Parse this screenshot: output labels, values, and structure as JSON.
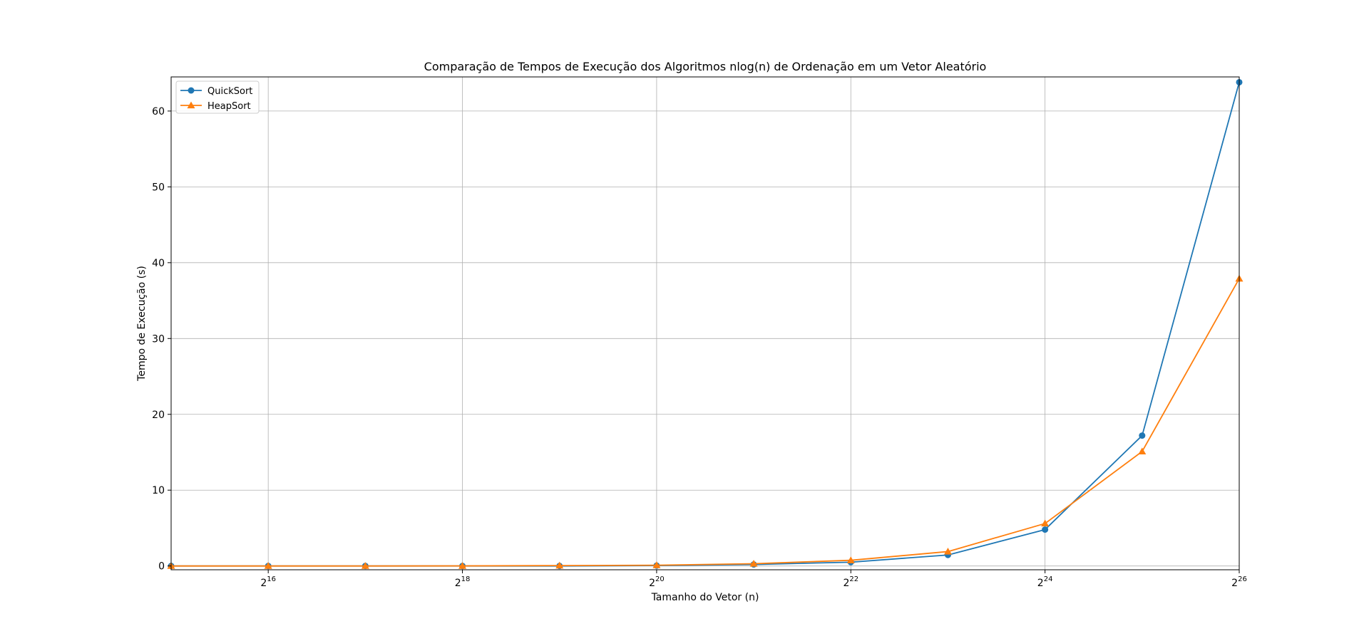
{
  "chart_data": {
    "type": "line",
    "title": "Comparação de Tempos de Execução dos Algoritmos nlog(n) de Ordenação em um Vetor Aleatório",
    "xlabel": "Tamanho do Vetor (n)",
    "ylabel": "Tempo de Execução (s)",
    "xscale": "log2",
    "x": [
      32768,
      65536,
      131072,
      262144,
      524288,
      1048576,
      2097152,
      4194304,
      8388608,
      16777216,
      33554432,
      67108864
    ],
    "xlim": [
      32768,
      67108864
    ],
    "ylim": [
      -0.5,
      64.5
    ],
    "xticks": [
      {
        "base": "2",
        "exp": "16",
        "value": 65536
      },
      {
        "base": "2",
        "exp": "18",
        "value": 262144
      },
      {
        "base": "2",
        "exp": "20",
        "value": 1048576
      },
      {
        "base": "2",
        "exp": "22",
        "value": 4194304
      },
      {
        "base": "2",
        "exp": "24",
        "value": 16777216
      },
      {
        "base": "2",
        "exp": "26",
        "value": 67108864
      }
    ],
    "yticks": [
      0,
      10,
      20,
      30,
      40,
      50,
      60
    ],
    "grid": true,
    "legend_position": "top-left",
    "series": [
      {
        "name": "QuickSort",
        "color": "#1f77b4",
        "marker": "circle",
        "values": [
          0.0,
          0.0,
          0.0,
          0.0,
          0.0,
          0.05,
          0.2,
          0.5,
          1.45,
          4.8,
          17.2,
          63.8
        ]
      },
      {
        "name": "HeapSort",
        "color": "#ff7f0e",
        "marker": "triangle",
        "values": [
          0.0,
          0.0,
          0.0,
          0.01,
          0.05,
          0.1,
          0.3,
          0.75,
          1.9,
          5.6,
          15.1,
          37.9
        ]
      }
    ]
  }
}
